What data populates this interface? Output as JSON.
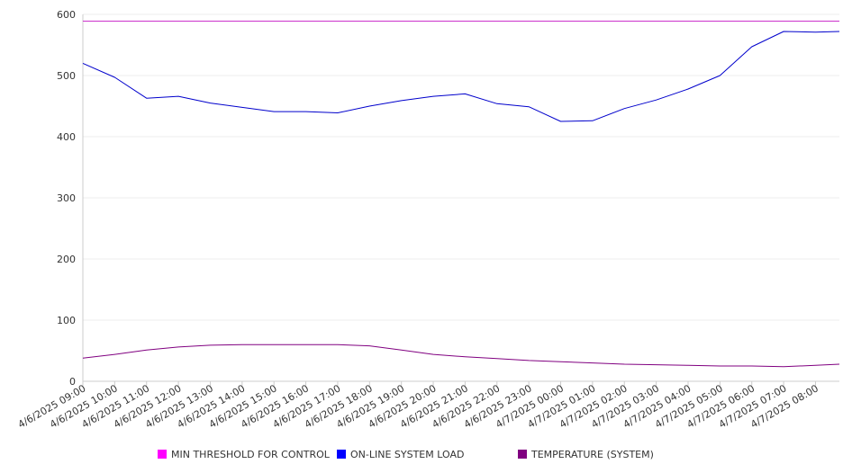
{
  "chart_data": {
    "type": "line",
    "title": "",
    "xlabel": "",
    "ylabel": "",
    "ylim": [
      0,
      600
    ],
    "yticks": [
      0,
      100,
      200,
      300,
      400,
      500,
      600
    ],
    "x_tick_labels": [
      "4/6/2025 09:00",
      "4/6/2025 10:00",
      "4/6/2025 11:00",
      "4/6/2025 12:00",
      "4/6/2025 13:00",
      "4/6/2025 14:00",
      "4/6/2025 15:00",
      "4/6/2025 16:00",
      "4/6/2025 17:00",
      "4/6/2025 18:00",
      "4/6/2025 19:00",
      "4/6/2025 20:00",
      "4/6/2025 21:00",
      "4/6/2025 22:00",
      "4/6/2025 23:00",
      "4/7/2025 00:00",
      "4/7/2025 01:00",
      "4/7/2025 02:00",
      "4/7/2025 03:00",
      "4/7/2025 04:00",
      "4/7/2025 05:00",
      "4/7/2025 06:00",
      "4/7/2025 07:00",
      "4/7/2025 08:00"
    ],
    "x": [
      "4/6/2025 09:00",
      "4/6/2025 10:00",
      "4/6/2025 11:00",
      "4/6/2025 12:00",
      "4/6/2025 13:00",
      "4/6/2025 14:00",
      "4/6/2025 15:00",
      "4/6/2025 16:00",
      "4/6/2025 17:00",
      "4/6/2025 18:00",
      "4/6/2025 19:00",
      "4/6/2025 20:00",
      "4/6/2025 21:00",
      "4/6/2025 22:00",
      "4/6/2025 23:00",
      "4/7/2025 00:00",
      "4/7/2025 01:00",
      "4/7/2025 02:00",
      "4/7/2025 03:00",
      "4/7/2025 04:00",
      "4/7/2025 05:00",
      "4/7/2025 06:00",
      "4/7/2025 07:00",
      "4/7/2025 08:00",
      "4/7/2025 08:45"
    ],
    "grid": true,
    "legend_position": "bottom",
    "series": [
      {
        "name": "MIN THRESHOLD FOR CONTROL",
        "color": "#cc33cc",
        "values": [
          589,
          589,
          589,
          589,
          589,
          589,
          589,
          589,
          589,
          589,
          589,
          589,
          589,
          589,
          589,
          589,
          589,
          589,
          589,
          589,
          589,
          589,
          589,
          589,
          589
        ]
      },
      {
        "name": "ON-LINE SYSTEM LOAD",
        "color": "#0000cc",
        "values": [
          520,
          497,
          463,
          466,
          455,
          448,
          441,
          441,
          439,
          450,
          459,
          466,
          470,
          454,
          449,
          425,
          426,
          446,
          460,
          478,
          500,
          547,
          572,
          571,
          572
        ]
      },
      {
        "name": "TEMPERATURE (SYSTEM)",
        "color": "#800080",
        "values": [
          38,
          44,
          51,
          56,
          59,
          60,
          60,
          60,
          60,
          58,
          51,
          44,
          40,
          37,
          34,
          32,
          30,
          28,
          27,
          26,
          25,
          25,
          24,
          26,
          28
        ]
      }
    ],
    "legend_colors": {
      "MIN THRESHOLD FOR CONTROL": "#ff00ff",
      "ON-LINE SYSTEM LOAD": "#0000ff",
      "TEMPERATURE (SYSTEM)": "#800080"
    }
  }
}
